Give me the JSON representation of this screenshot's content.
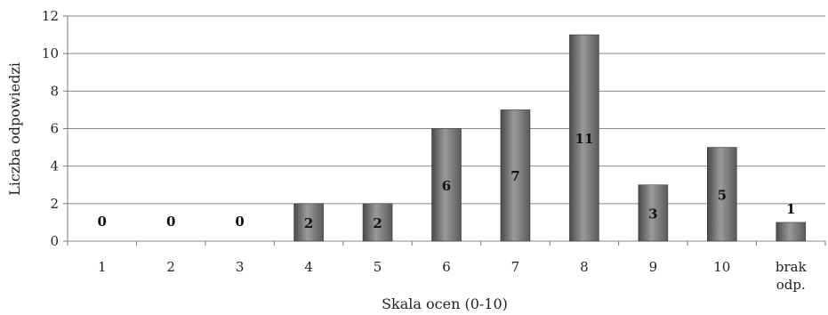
{
  "chart_data": {
    "type": "bar",
    "categories": [
      "1",
      "2",
      "3",
      "4",
      "5",
      "6",
      "7",
      "8",
      "9",
      "10",
      "brak odp."
    ],
    "values": [
      0,
      0,
      0,
      2,
      2,
      6,
      7,
      11,
      3,
      5,
      1
    ],
    "data_labels": [
      "0",
      "0",
      "0",
      "2",
      "2",
      "6",
      "7",
      "11",
      "3",
      "5",
      "1"
    ],
    "title": "",
    "xlabel": "Skala ocen (0-10)",
    "ylabel": "Liczba odpowiedzi",
    "ylim": [
      0,
      12
    ],
    "yticks": [
      "0",
      "2",
      "4",
      "6",
      "8",
      "10",
      "12"
    ],
    "grid": true,
    "legend": "none",
    "colors": {
      "bar_dark": "#4a4a4a",
      "bar_mid": "#8c8c8c",
      "bar_light": "#b5b5b5",
      "grid": "#8a8a8a",
      "axis": "#777777"
    }
  }
}
